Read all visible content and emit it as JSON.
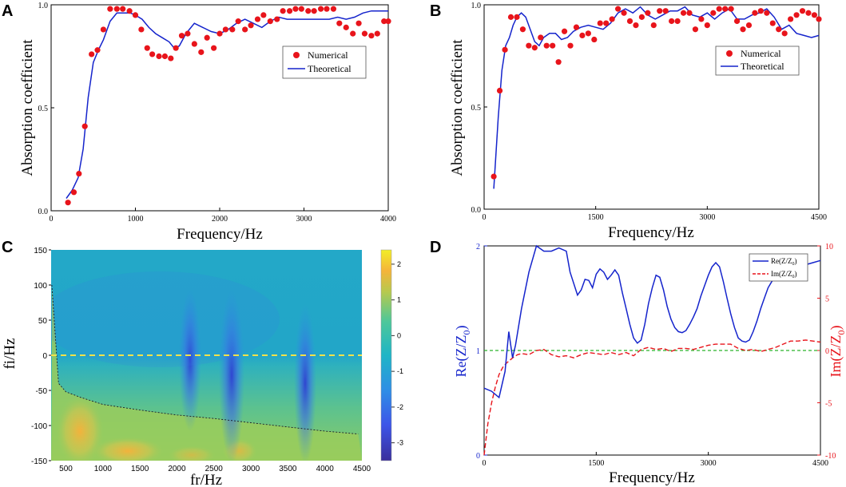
{
  "figure": {
    "panel_labels": [
      "A",
      "B",
      "C",
      "D"
    ]
  },
  "chart_data": [
    {
      "id": "A",
      "type": "scatter+line",
      "xlabel": "Frequency/Hz",
      "ylabel": "Absorption coefficient",
      "xlim": [
        0,
        4000
      ],
      "ylim": [
        0,
        1
      ],
      "xticks": [
        0,
        1000,
        2000,
        3000,
        4000
      ],
      "xtick_labels": [
        "0",
        "1000",
        "2000",
        "3000",
        "4000"
      ],
      "yticks": [
        0,
        0.5,
        1
      ],
      "ytick_labels": [
        "0.0",
        "0.5",
        "1.0"
      ],
      "legend": {
        "position": "upper-right",
        "entries": [
          "Numerical",
          "Theoretical"
        ]
      },
      "series": [
        {
          "name": "Numerical",
          "style": "markers",
          "color": "#e8141b",
          "x": [
            200,
            270,
            330,
            400,
            480,
            550,
            620,
            700,
            780,
            850,
            930,
            1000,
            1070,
            1140,
            1200,
            1280,
            1350,
            1420,
            1480,
            1550,
            1620,
            1700,
            1780,
            1850,
            1930,
            2000,
            2070,
            2150,
            2220,
            2300,
            2370,
            2450,
            2520,
            2600,
            2680,
            2750,
            2830,
            2900,
            2970,
            3050,
            3120,
            3200,
            3270,
            3350,
            3420,
            3500,
            3580,
            3650,
            3720,
            3800,
            3870,
            3950,
            4000
          ],
          "y": [
            0.04,
            0.09,
            0.18,
            0.41,
            0.76,
            0.78,
            0.88,
            0.98,
            0.98,
            0.98,
            0.97,
            0.95,
            0.88,
            0.79,
            0.76,
            0.75,
            0.75,
            0.74,
            0.79,
            0.85,
            0.86,
            0.81,
            0.77,
            0.84,
            0.79,
            0.86,
            0.88,
            0.88,
            0.92,
            0.88,
            0.9,
            0.93,
            0.95,
            0.92,
            0.93,
            0.97,
            0.97,
            0.98,
            0.98,
            0.97,
            0.97,
            0.98,
            0.98,
            0.98,
            0.91,
            0.89,
            0.86,
            0.91,
            0.86,
            0.85,
            0.86,
            0.92,
            0.92
          ]
        },
        {
          "name": "Theoretical",
          "style": "line",
          "color": "#1524cc",
          "x": [
            180,
            250,
            320,
            380,
            440,
            500,
            560,
            620,
            700,
            780,
            860,
            940,
            1000,
            1080,
            1160,
            1240,
            1320,
            1400,
            1460,
            1520,
            1600,
            1700,
            1800,
            1900,
            2000,
            2100,
            2200,
            2300,
            2400,
            2500,
            2600,
            2700,
            2800,
            2900,
            3000,
            3100,
            3200,
            3300,
            3400,
            3500,
            3600,
            3700,
            3800,
            3900,
            4000
          ],
          "y": [
            0.06,
            0.1,
            0.16,
            0.3,
            0.55,
            0.72,
            0.78,
            0.83,
            0.92,
            0.96,
            0.96,
            0.96,
            0.95,
            0.93,
            0.89,
            0.86,
            0.84,
            0.82,
            0.79,
            0.8,
            0.86,
            0.91,
            0.89,
            0.87,
            0.86,
            0.88,
            0.91,
            0.93,
            0.91,
            0.89,
            0.92,
            0.94,
            0.93,
            0.93,
            0.93,
            0.93,
            0.93,
            0.93,
            0.94,
            0.93,
            0.94,
            0.96,
            0.97,
            0.97,
            0.97
          ]
        }
      ]
    },
    {
      "id": "B",
      "type": "scatter+line",
      "xlabel": "Frequency/Hz",
      "ylabel": "Absorption coefficient",
      "xlim": [
        0,
        4500
      ],
      "ylim": [
        0,
        1
      ],
      "xticks": [
        0,
        1500,
        3000,
        4500
      ],
      "xtick_labels": [
        "0",
        "1500",
        "3000",
        "4500"
      ],
      "yticks": [
        0,
        0.5,
        1
      ],
      "ytick_labels": [
        "0.0",
        "0.5",
        "1.0"
      ],
      "legend": {
        "position": "upper-right",
        "entries": [
          "Numerical",
          "Theoretical"
        ]
      },
      "series": [
        {
          "name": "Numerical",
          "style": "markers",
          "color": "#e8141b",
          "x": [
            130,
            210,
            280,
            360,
            440,
            520,
            600,
            680,
            760,
            840,
            920,
            1000,
            1080,
            1160,
            1240,
            1320,
            1400,
            1480,
            1560,
            1640,
            1720,
            1800,
            1880,
            1960,
            2040,
            2120,
            2200,
            2280,
            2360,
            2440,
            2520,
            2600,
            2680,
            2760,
            2840,
            2920,
            3000,
            3080,
            3160,
            3240,
            3320,
            3400,
            3480,
            3560,
            3640,
            3720,
            3800,
            3880,
            3960,
            4040,
            4120,
            4200,
            4280,
            4360,
            4440,
            4500
          ],
          "y": [
            0.16,
            0.58,
            0.78,
            0.94,
            0.94,
            0.88,
            0.8,
            0.79,
            0.84,
            0.8,
            0.8,
            0.72,
            0.87,
            0.8,
            0.89,
            0.85,
            0.86,
            0.83,
            0.91,
            0.91,
            0.93,
            0.98,
            0.96,
            0.92,
            0.9,
            0.94,
            0.96,
            0.9,
            0.97,
            0.97,
            0.92,
            0.92,
            0.96,
            0.96,
            0.88,
            0.93,
            0.9,
            0.96,
            0.98,
            0.98,
            0.98,
            0.92,
            0.88,
            0.9,
            0.96,
            0.97,
            0.96,
            0.91,
            0.88,
            0.86,
            0.93,
            0.95,
            0.97,
            0.96,
            0.95,
            0.93
          ]
        },
        {
          "name": "Theoretical",
          "style": "line",
          "color": "#1524cc",
          "x": [
            130,
            190,
            240,
            290,
            340,
            390,
            440,
            500,
            560,
            620,
            680,
            740,
            800,
            880,
            960,
            1040,
            1120,
            1200,
            1300,
            1400,
            1500,
            1600,
            1700,
            1800,
            1900,
            2000,
            2100,
            2200,
            2300,
            2400,
            2500,
            2600,
            2700,
            2800,
            2900,
            3000,
            3100,
            3200,
            3300,
            3400,
            3500,
            3600,
            3700,
            3800,
            3900,
            4000,
            4100,
            4200,
            4300,
            4400,
            4500
          ],
          "y": [
            0.1,
            0.45,
            0.68,
            0.8,
            0.84,
            0.9,
            0.94,
            0.96,
            0.94,
            0.88,
            0.82,
            0.8,
            0.84,
            0.86,
            0.86,
            0.83,
            0.84,
            0.87,
            0.89,
            0.9,
            0.89,
            0.88,
            0.91,
            0.96,
            0.98,
            0.96,
            0.99,
            0.95,
            0.93,
            0.95,
            0.97,
            0.97,
            0.99,
            0.95,
            0.94,
            0.96,
            0.93,
            0.96,
            0.98,
            0.93,
            0.93,
            0.95,
            0.96,
            0.98,
            0.94,
            0.88,
            0.9,
            0.86,
            0.85,
            0.84,
            0.85
          ]
        }
      ]
    },
    {
      "id": "C",
      "type": "heatmap",
      "xlabel": "fr/Hz",
      "ylabel": "fi/Hz",
      "xlim": [
        300,
        4500
      ],
      "ylim": [
        -150,
        150
      ],
      "xticks": [
        500,
        1000,
        1500,
        2000,
        2500,
        3000,
        3500,
        4000,
        4500
      ],
      "xtick_labels": [
        "500",
        "1000",
        "1500",
        "2000",
        "2500",
        "3000",
        "3500",
        "4000",
        "4500"
      ],
      "yticks": [
        150,
        100,
        50,
        0,
        -50,
        -100,
        -150
      ],
      "ytick_labels": [
        "150",
        "100",
        "50",
        "0",
        "-50",
        "-100",
        "-150"
      ],
      "colorbar": {
        "range": [
          -3.5,
          2.4
        ],
        "ticks": [
          2,
          1,
          0,
          -1,
          -2,
          -3
        ],
        "tick_labels": [
          "2",
          "1",
          "0",
          "-1",
          "-2",
          "-3"
        ]
      },
      "reference_line": {
        "y": 0,
        "color": "#f2e24a",
        "style": "dashed"
      },
      "minima_fr": [
        2130,
        2700,
        3780
      ],
      "contour_boundary": {
        "x": [
          310,
          400,
          500,
          700,
          1000,
          1500,
          2000,
          2500,
          3000,
          3500,
          4000,
          4450
        ],
        "y": [
          100,
          -40,
          -52,
          -60,
          -70,
          -78,
          -85,
          -90,
          -96,
          -102,
          -108,
          -112
        ]
      }
    },
    {
      "id": "D",
      "type": "line-dual-axis",
      "xlabel": "Frequency/Hz",
      "ylabel_left": "Re(Z/Z0)",
      "ylabel_right": "Im(Z/Z0)",
      "xlim": [
        0,
        4500
      ],
      "ylim_left": [
        0,
        2
      ],
      "ylim_right": [
        -10,
        10
      ],
      "xticks": [
        0,
        1500,
        3000,
        4500
      ],
      "xtick_labels": [
        "0",
        "1500",
        "3000",
        "4500"
      ],
      "yticks_left": [
        0,
        1,
        2
      ],
      "ytick_labels_left": [
        "0",
        "1",
        "2"
      ],
      "yticks_right": [
        10,
        5,
        0,
        -5,
        -10
      ],
      "ytick_labels_right": [
        "10",
        "5",
        "0",
        "-5",
        "-10"
      ],
      "legend": {
        "position": "upper-right",
        "entries": [
          "Re(Z/Z0)",
          "Im(Z/Z0)"
        ]
      },
      "reference_line": {
        "y_left": 1,
        "color": "#2ab52a",
        "style": "dashed"
      },
      "series": [
        {
          "name": "Re(Z/Z0)",
          "axis": "left",
          "color": "#1524cc",
          "style": "solid",
          "x": [
            0,
            100,
            200,
            280,
            330,
            380,
            420,
            500,
            600,
            700,
            800,
            900,
            1000,
            1100,
            1150,
            1250,
            1300,
            1350,
            1400,
            1450,
            1500,
            1550,
            1600,
            1650,
            1700,
            1750,
            1800,
            1850,
            1900,
            1950,
            2000,
            2050,
            2100,
            2150,
            2200,
            2250,
            2300,
            2350,
            2400,
            2450,
            2500,
            2550,
            2600,
            2650,
            2700,
            2750,
            2800,
            2850,
            2900,
            2950,
            3000,
            3050,
            3100,
            3150,
            3200,
            3250,
            3300,
            3350,
            3400,
            3450,
            3500,
            3550,
            3600,
            3650,
            3700,
            3750,
            3800,
            3850,
            3900,
            3950,
            4000,
            4100,
            4200,
            4300,
            4400,
            4500
          ],
          "y": [
            0.64,
            0.61,
            0.55,
            0.8,
            1.18,
            0.93,
            1.05,
            1.4,
            1.75,
            2.05,
            1.95,
            1.95,
            1.98,
            1.95,
            1.75,
            1.53,
            1.58,
            1.68,
            1.67,
            1.6,
            1.73,
            1.78,
            1.75,
            1.68,
            1.72,
            1.77,
            1.72,
            1.55,
            1.4,
            1.25,
            1.12,
            1.07,
            1.1,
            1.25,
            1.45,
            1.6,
            1.72,
            1.7,
            1.58,
            1.42,
            1.3,
            1.22,
            1.18,
            1.17,
            1.19,
            1.25,
            1.32,
            1.4,
            1.52,
            1.62,
            1.72,
            1.8,
            1.84,
            1.8,
            1.66,
            1.5,
            1.35,
            1.22,
            1.12,
            1.09,
            1.08,
            1.1,
            1.18,
            1.28,
            1.4,
            1.5,
            1.6,
            1.66,
            1.7,
            1.74,
            1.76,
            1.78,
            1.8,
            1.82,
            1.84,
            1.86
          ]
        },
        {
          "name": "Im(Z/Z0)",
          "axis": "right",
          "color": "#e8141b",
          "style": "dashed",
          "x": [
            0,
            50,
            100,
            150,
            200,
            250,
            300,
            350,
            400,
            450,
            500,
            600,
            700,
            800,
            900,
            1000,
            1100,
            1200,
            1300,
            1400,
            1500,
            1600,
            1700,
            1800,
            1900,
            2000,
            2100,
            2200,
            2300,
            2400,
            2500,
            2600,
            2700,
            2800,
            2900,
            3000,
            3100,
            3200,
            3300,
            3400,
            3500,
            3600,
            3700,
            3800,
            3900,
            4000,
            4100,
            4200,
            4300,
            4400,
            4500
          ],
          "y": [
            -10,
            -7,
            -5,
            -3.5,
            -2.3,
            -1.6,
            -1.2,
            -0.9,
            -0.6,
            -0.4,
            -0.3,
            -0.4,
            0,
            0.1,
            -0.4,
            -0.6,
            -0.5,
            -0.7,
            -0.4,
            -0.2,
            -0.3,
            -0.4,
            -0.2,
            -0.4,
            -0.2,
            -0.5,
            0.1,
            0.3,
            0.1,
            0.2,
            -0.1,
            0.2,
            0.2,
            0.1,
            0.3,
            0.5,
            0.6,
            0.6,
            0.6,
            0.2,
            0,
            0.1,
            -0.1,
            0.1,
            0.3,
            0.6,
            0.9,
            0.9,
            1.0,
            0.9,
            0.8
          ]
        }
      ]
    }
  ]
}
